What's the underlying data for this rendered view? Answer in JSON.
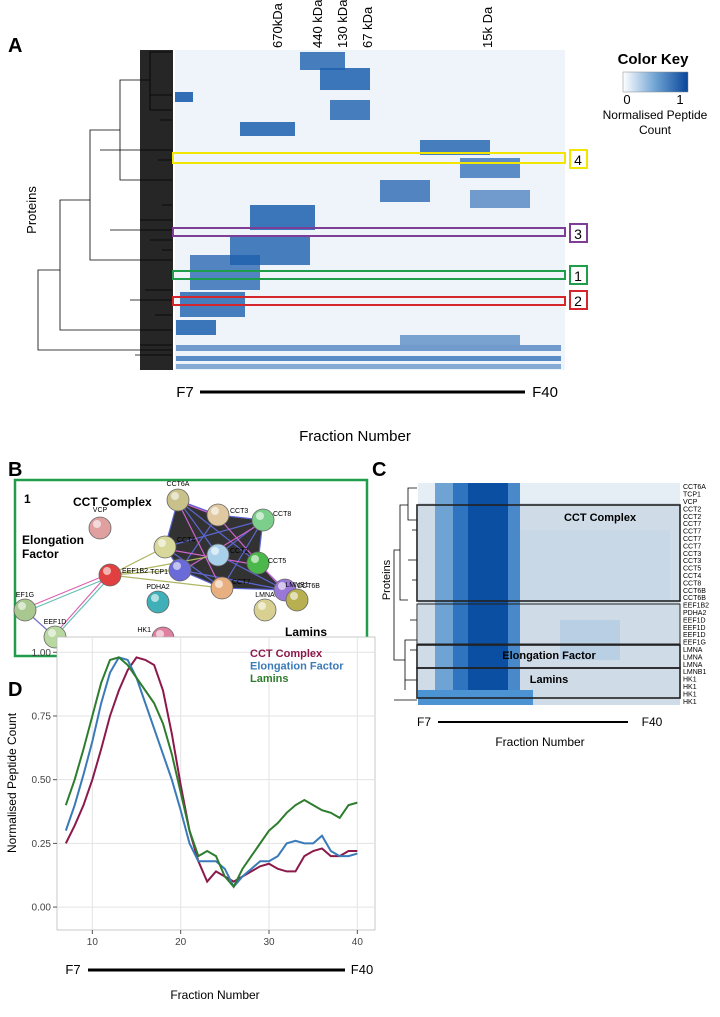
{
  "panel_labels": [
    "A",
    "B",
    "C",
    "D"
  ],
  "panel_a": {
    "size_markers": [
      "670kDa",
      "440 kDa",
      "130 kDa",
      "67 kDa",
      "15k Da"
    ],
    "color_key": {
      "title": "Color Key",
      "min": "0",
      "max": "1",
      "label_lines": [
        "Normalised Peptide",
        "Count"
      ]
    },
    "y_label": "Proteins",
    "cluster_boxes": [
      "4",
      "3",
      "1",
      "2"
    ],
    "x_start": "F7",
    "x_end": "F40",
    "x_label": "Fraction Number"
  },
  "panel_b": {
    "box_label": "1",
    "group_labels": [
      [
        "CCT Complex"
      ],
      [
        "Elongation",
        "Factor"
      ],
      [
        "Lamins"
      ]
    ],
    "nodes": [
      "CCT6A",
      "CCT3",
      "CCT8",
      "CCT4",
      "CCT2",
      "CCT5",
      "TCP1",
      "CCT7",
      "CCT6B",
      "VCP",
      "EEF1B2",
      "EF1G",
      "EEF1D",
      "PDHA2",
      "HK1",
      "LMNA",
      "LMNB1"
    ]
  },
  "panel_c": {
    "rows": [
      "CCT6A",
      "TCP1",
      "VCP",
      "CCT2",
      "CCT2",
      "CCT7",
      "CCT7",
      "CCT7",
      "CCT7",
      "CCT3",
      "CCT3",
      "CCT5",
      "CCT4",
      "CCT8",
      "CCT6B",
      "CCT6B",
      "EEF1B2",
      "PDHA2",
      "EEF1D",
      "EEF1D",
      "EEF1D",
      "EEF1G",
      "LMNA",
      "LMNA",
      "LMNA",
      "LMNB1",
      "HK1",
      "HK1",
      "HK1",
      "HK1"
    ],
    "box_labels": [
      "CCT Complex",
      "Elongation Factor",
      "Lamins"
    ],
    "y_label": "Proteins",
    "x_start": "F7",
    "x_end": "F40",
    "x_label": "Fraction Number"
  },
  "chart_data": {
    "type": "line",
    "x_label": "Fraction Number",
    "y_label": "Normalised Peptide Count",
    "x_start": "F7",
    "x_end": "F40",
    "x": [
      7,
      8,
      9,
      10,
      11,
      12,
      13,
      14,
      15,
      16,
      17,
      18,
      19,
      20,
      21,
      22,
      23,
      24,
      25,
      26,
      27,
      28,
      29,
      30,
      31,
      32,
      33,
      34,
      35,
      36,
      37,
      38,
      39,
      40
    ],
    "xlim": [
      6,
      42
    ],
    "xticks": [
      10,
      20,
      30,
      40
    ],
    "ylim": [
      -0.09,
      1.06
    ],
    "yticks": [
      {
        "value": 0,
        "label": "0.00"
      },
      {
        "value": 0.25,
        "label": "0.25"
      },
      {
        "value": 0.5,
        "label": "0.50"
      },
      {
        "value": 0.75,
        "label": "0.75"
      },
      {
        "value": 1,
        "label": "1.00"
      }
    ],
    "grid": true,
    "series": [
      {
        "name": "CCT Complex",
        "color": "#8b1a4a",
        "values": [
          0.25,
          0.32,
          0.4,
          0.5,
          0.62,
          0.75,
          0.85,
          0.93,
          0.98,
          0.97,
          0.95,
          0.85,
          0.68,
          0.48,
          0.3,
          0.18,
          0.1,
          0.14,
          0.12,
          0.1,
          0.12,
          0.14,
          0.16,
          0.17,
          0.15,
          0.14,
          0.14,
          0.2,
          0.22,
          0.23,
          0.2,
          0.2,
          0.22,
          0.22
        ]
      },
      {
        "name": "Elongation Factor",
        "color": "#3a7ab8",
        "values": [
          0.3,
          0.4,
          0.52,
          0.65,
          0.8,
          0.92,
          0.98,
          0.97,
          0.9,
          0.8,
          0.7,
          0.6,
          0.5,
          0.38,
          0.25,
          0.18,
          0.18,
          0.18,
          0.15,
          0.08,
          0.12,
          0.15,
          0.18,
          0.18,
          0.2,
          0.25,
          0.26,
          0.25,
          0.25,
          0.28,
          0.22,
          0.2,
          0.2,
          0.21
        ]
      },
      {
        "name": "Lamins",
        "color": "#2e7d2e",
        "values": [
          0.4,
          0.5,
          0.62,
          0.75,
          0.88,
          0.97,
          0.98,
          0.95,
          0.9,
          0.85,
          0.8,
          0.72,
          0.6,
          0.45,
          0.3,
          0.2,
          0.22,
          0.2,
          0.12,
          0.08,
          0.15,
          0.2,
          0.25,
          0.3,
          0.33,
          0.37,
          0.4,
          0.42,
          0.4,
          0.38,
          0.37,
          0.35,
          0.4,
          0.41
        ]
      }
    ]
  }
}
